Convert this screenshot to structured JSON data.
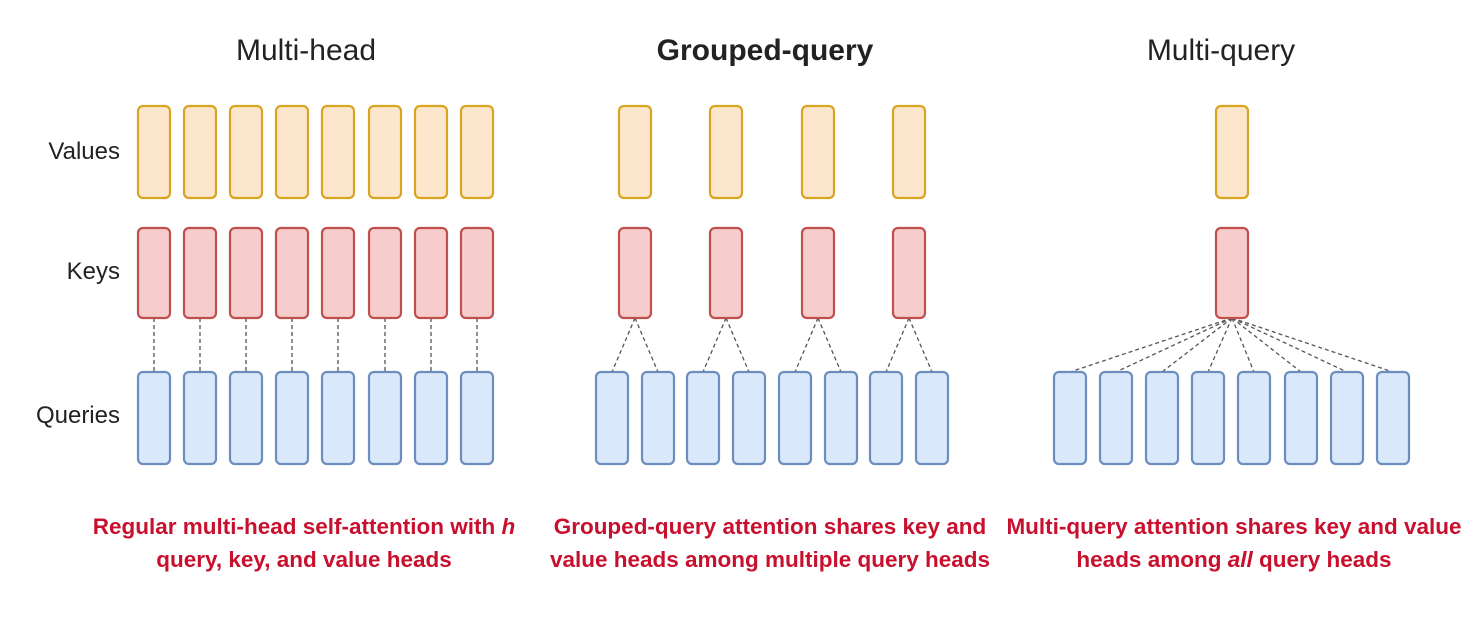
{
  "panels": [
    {
      "title": "Multi-head",
      "caption": {
        "pre": "Regular multi-head self-attention with ",
        "em": "h",
        "post": " query, key, and value heads"
      },
      "num_queries": 8,
      "num_kv": 8
    },
    {
      "title": "Grouped-query",
      "caption": {
        "pre": "Grouped-query attention shares key and value heads among multiple query heads",
        "em": "",
        "post": ""
      },
      "num_queries": 8,
      "num_kv": 4
    },
    {
      "title": "Multi-query",
      "caption": {
        "pre": "Multi-query attention shares key and value heads among ",
        "em": "all",
        "post": " query heads"
      },
      "num_queries": 8,
      "num_kv": 1
    }
  ],
  "row_labels": {
    "values": "Values",
    "keys": "Keys",
    "queries": "Queries"
  },
  "colors": {
    "values_fill": "#fde7cc",
    "values_stroke": "#d9a520",
    "keys_fill": "#f7cccc",
    "keys_stroke": "#c0504d",
    "queries_fill": "#dae8fc",
    "queries_stroke": "#6c8ebf",
    "connector": "#555555",
    "caption": "#c8102e"
  }
}
